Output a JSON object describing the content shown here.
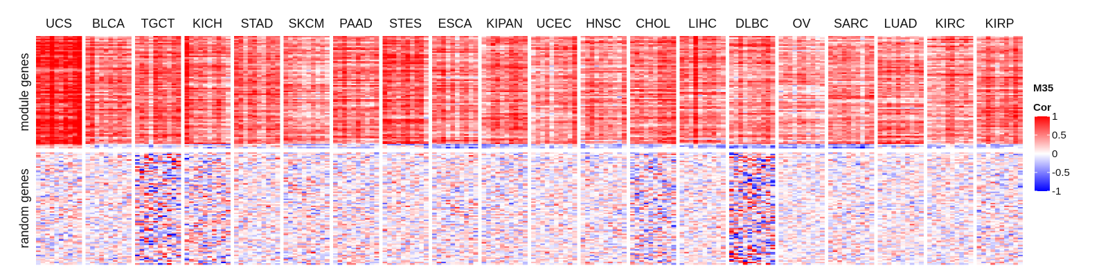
{
  "chart_data": {
    "type": "heatmap",
    "title": "",
    "legend": {
      "title_line1": "M35",
      "title_line2": "Cor",
      "ticks": [
        1,
        0.5,
        0,
        -0.5,
        -1
      ],
      "tick_labels": [
        "1",
        "0.5",
        "0",
        "-0.5",
        "-1"
      ],
      "range": [
        -1,
        1
      ],
      "placement": "right"
    },
    "colorscale": {
      "low": "#0000ff",
      "mid": "#ffffff",
      "high": "#ff0000"
    },
    "row_groups": [
      {
        "label": "module genes",
        "approx_row_count": 80,
        "typical_correlation": 0.6
      },
      {
        "label": "random genes",
        "approx_row_count": 80,
        "typical_correlation": 0.0
      }
    ],
    "columns": [
      {
        "label": "UCS",
        "sub_columns": 10,
        "module_mean": 0.9,
        "random_spread": 0.25
      },
      {
        "label": "BLCA",
        "sub_columns": 10,
        "module_mean": 0.55,
        "random_spread": 0.22
      },
      {
        "label": "TGCT",
        "sub_columns": 10,
        "module_mean": 0.6,
        "random_spread": 0.45
      },
      {
        "label": "KICH",
        "sub_columns": 10,
        "module_mean": 0.6,
        "random_spread": 0.35
      },
      {
        "label": "STAD",
        "sub_columns": 10,
        "module_mean": 0.55,
        "random_spread": 0.22
      },
      {
        "label": "SKCM",
        "sub_columns": 10,
        "module_mean": 0.5,
        "random_spread": 0.25
      },
      {
        "label": "PAAD",
        "sub_columns": 10,
        "module_mean": 0.55,
        "random_spread": 0.25
      },
      {
        "label": "STES",
        "sub_columns": 10,
        "module_mean": 0.55,
        "random_spread": 0.22
      },
      {
        "label": "ESCA",
        "sub_columns": 10,
        "module_mean": 0.55,
        "random_spread": 0.25
      },
      {
        "label": "KIPAN",
        "sub_columns": 10,
        "module_mean": 0.5,
        "random_spread": 0.25
      },
      {
        "label": "UCEC",
        "sub_columns": 10,
        "module_mean": 0.45,
        "random_spread": 0.2
      },
      {
        "label": "HNSC",
        "sub_columns": 10,
        "module_mean": 0.5,
        "random_spread": 0.22
      },
      {
        "label": "CHOL",
        "sub_columns": 10,
        "module_mean": 0.55,
        "random_spread": 0.35
      },
      {
        "label": "LIHC",
        "sub_columns": 10,
        "module_mean": 0.55,
        "random_spread": 0.2
      },
      {
        "label": "DLBC",
        "sub_columns": 10,
        "module_mean": 0.5,
        "random_spread": 0.5
      },
      {
        "label": "OV",
        "sub_columns": 10,
        "module_mean": 0.35,
        "random_spread": 0.18
      },
      {
        "label": "SARC",
        "sub_columns": 10,
        "module_mean": 0.45,
        "random_spread": 0.22
      },
      {
        "label": "LUAD",
        "sub_columns": 10,
        "module_mean": 0.45,
        "random_spread": 0.2
      },
      {
        "label": "KIRC",
        "sub_columns": 10,
        "module_mean": 0.45,
        "random_spread": 0.2
      },
      {
        "label": "KIRP",
        "sub_columns": 10,
        "module_mean": 0.45,
        "random_spread": 0.25
      }
    ]
  }
}
